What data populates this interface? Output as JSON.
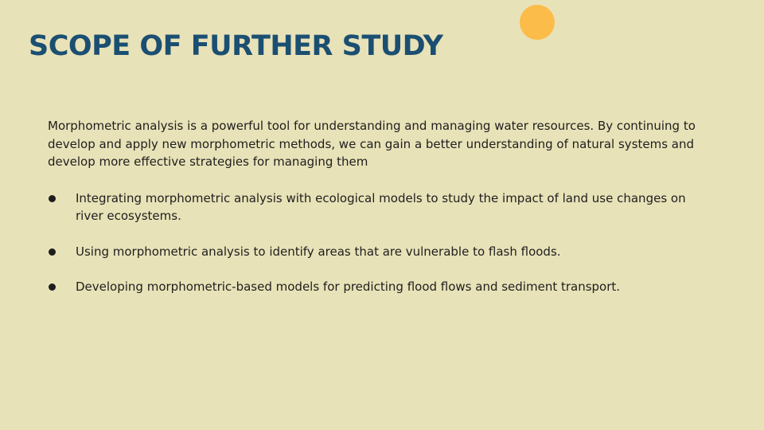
{
  "slide": {
    "title": "SCOPE OF FURTHER STUDY",
    "intro": "Morphometric analysis is a powerful tool for understanding and managing water resources. By continuing to develop and apply new morphometric methods, we can gain a better understanding of natural systems and develop more effective strategies for managing them",
    "bullets": [
      "Integrating morphometric analysis with ecological models to study the impact of land use changes on river ecosystems.",
      "Using morphometric analysis to identify areas that are vulnerable to flash floods.",
      "Developing morphometric-based models for predicting flood flows and sediment transport."
    ]
  },
  "colors": {
    "background": "#e8e2b8",
    "title": "#1b4f72",
    "accent_circle": "#fbbc49",
    "body_text": "#1e1e1e"
  }
}
